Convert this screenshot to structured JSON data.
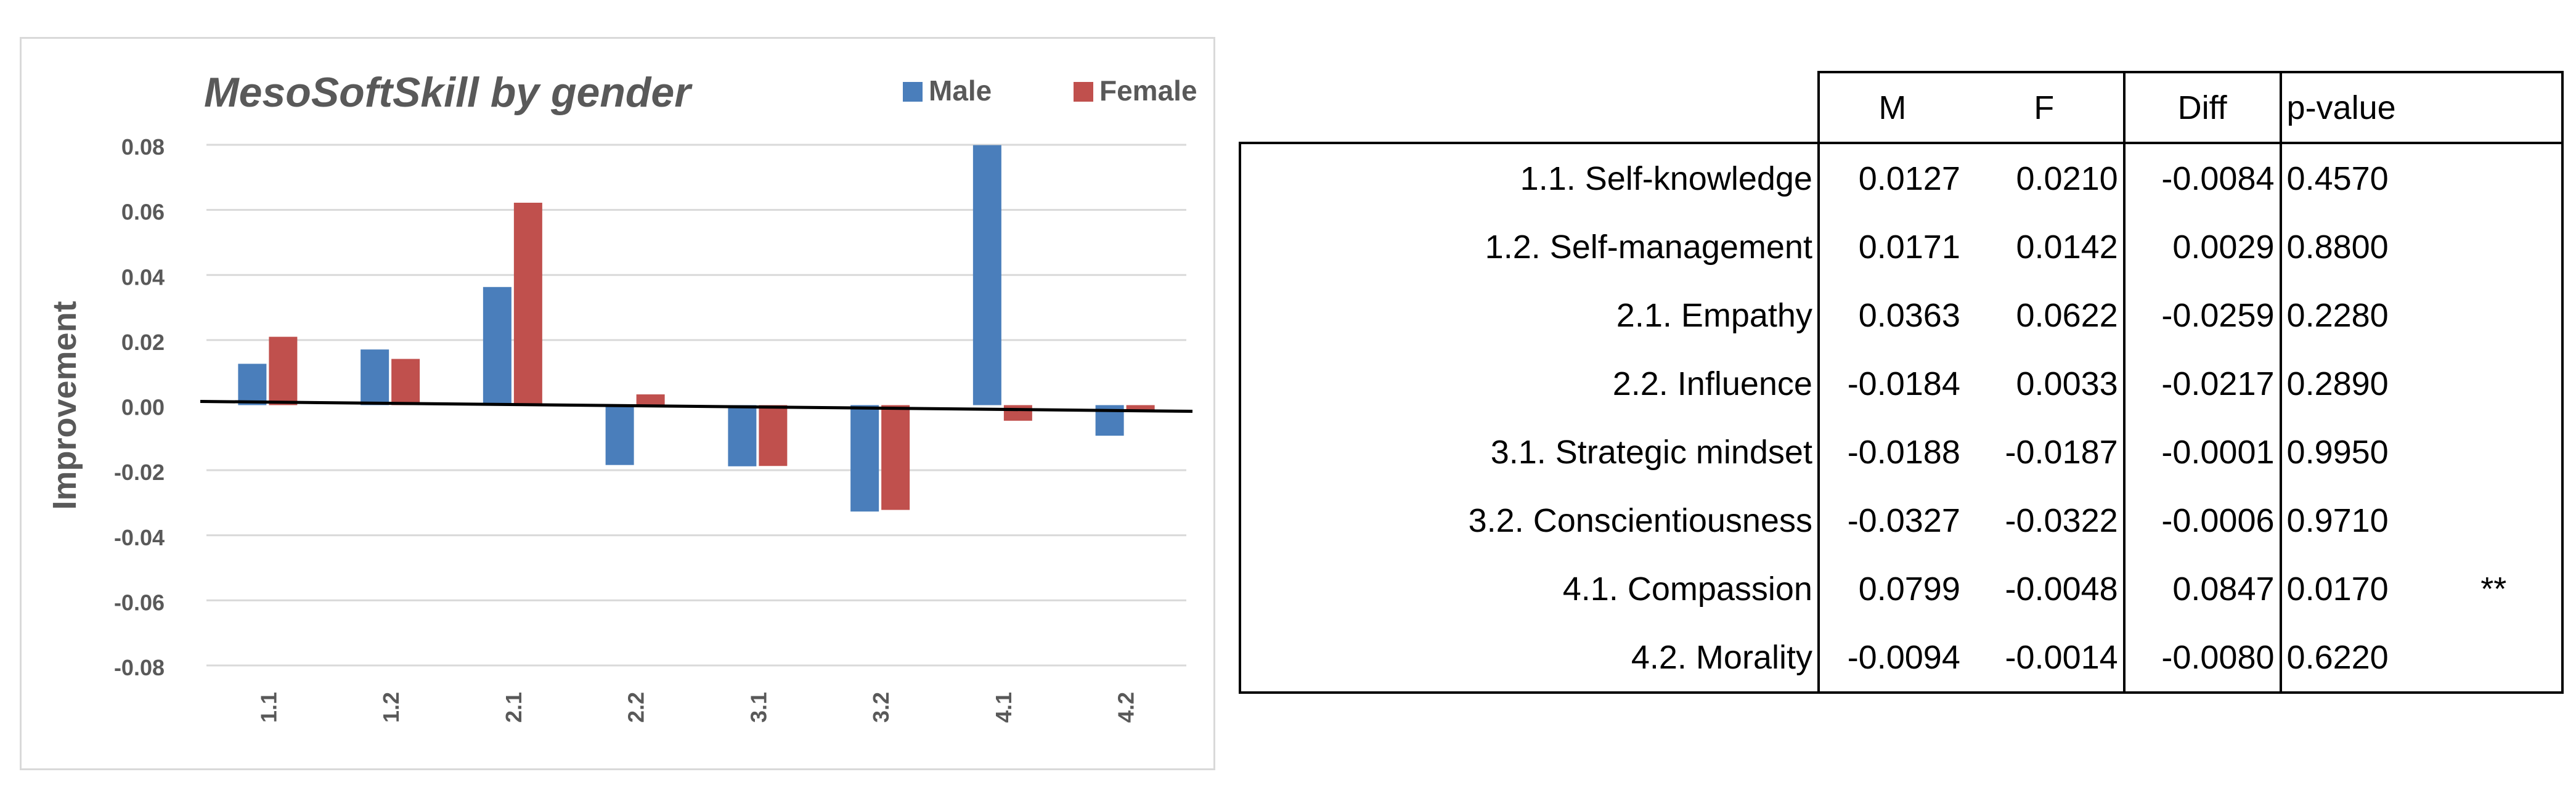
{
  "chart_data": {
    "type": "bar",
    "title": "MesoSoftSkill by gender",
    "xlabel": "",
    "ylabel": "Improvement",
    "categories": [
      "1.1",
      "1.2",
      "2.1",
      "2.2",
      "3.1",
      "3.2",
      "4.1",
      "4.2"
    ],
    "series": [
      {
        "name": "Male",
        "color": "#4a7ebb",
        "values": [
          0.0127,
          0.0171,
          0.0363,
          -0.0184,
          -0.0188,
          -0.0327,
          0.0799,
          -0.0094
        ]
      },
      {
        "name": "Female",
        "color": "#c0504d",
        "values": [
          0.021,
          0.0142,
          0.0622,
          0.0033,
          -0.0187,
          -0.0322,
          -0.0048,
          -0.0014
        ]
      }
    ],
    "ylim": [
      -0.08,
      0.08
    ],
    "yticks": [
      "0.08",
      "0.06",
      "0.04",
      "0.02",
      "0.00",
      "-0.02",
      "-0.04",
      "-0.06",
      "-0.08"
    ],
    "grid": true,
    "legend": "top-right"
  },
  "table": {
    "headers": {
      "m": "M",
      "f": "F",
      "diff": "Diff",
      "p": "p-value"
    },
    "rows": [
      {
        "label": "1.1. Self-knowledge",
        "m": "0.0127",
        "f": "0.0210",
        "diff": "-0.0084",
        "p": "0.4570",
        "sig": ""
      },
      {
        "label": "1.2. Self-management",
        "m": "0.0171",
        "f": "0.0142",
        "diff": "0.0029",
        "p": "0.8800",
        "sig": ""
      },
      {
        "label": "2.1. Empathy",
        "m": "0.0363",
        "f": "0.0622",
        "diff": "-0.0259",
        "p": "0.2280",
        "sig": ""
      },
      {
        "label": "2.2. Influence",
        "m": "-0.0184",
        "f": "0.0033",
        "diff": "-0.0217",
        "p": "0.2890",
        "sig": ""
      },
      {
        "label": "3.1. Strategic mindset",
        "m": "-0.0188",
        "f": "-0.0187",
        "diff": "-0.0001",
        "p": "0.9950",
        "sig": ""
      },
      {
        "label": "3.2. Conscientiousness",
        "m": "-0.0327",
        "f": "-0.0322",
        "diff": "-0.0006",
        "p": "0.9710",
        "sig": ""
      },
      {
        "label": "4.1. Compassion",
        "m": "0.0799",
        "f": "-0.0048",
        "diff": "0.0847",
        "p": "0.0170",
        "sig": "**"
      },
      {
        "label": "4.2. Morality",
        "m": "-0.0094",
        "f": "-0.0014",
        "diff": "-0.0080",
        "p": "0.6220",
        "sig": ""
      }
    ]
  }
}
